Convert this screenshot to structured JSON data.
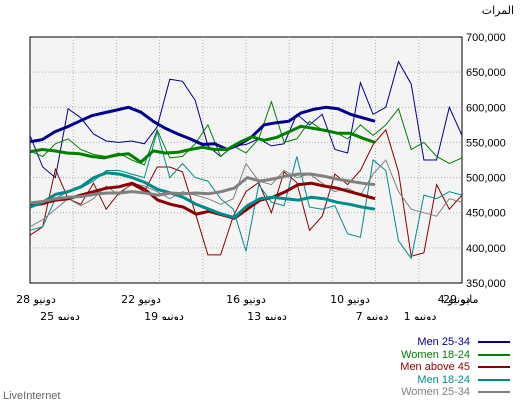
{
  "chart_data": {
    "type": "line",
    "ylabel": "المرات",
    "ylim": [
      350000,
      700000
    ],
    "yticks": [
      "700,000",
      "650,000",
      "600,000",
      "550,000",
      "500,000",
      "450,000",
      "400,000",
      "350,000"
    ],
    "x_ticks_upper": [
      "28 دونيو",
      "22 دونيو",
      "16 دونيو",
      "10 دونيو",
      "4 دونيو",
      "29 مايو"
    ],
    "x_ticks_lower": [
      "25 دونيو",
      "19 دونيو",
      "13 دونيو",
      "7 دونيو",
      "1 دونيو"
    ],
    "grid": true,
    "legend_position": "bottom-right",
    "series": [
      {
        "name": "Men 25-34",
        "color": "#00008b",
        "values": [
          560000,
          515000,
          500000,
          598000,
          585000,
          562000,
          552000,
          550000,
          552000,
          548000,
          572000,
          640000,
          637000,
          610000,
          545000,
          530000,
          545000,
          547000,
          555000,
          545000,
          548000,
          590000,
          575000,
          590000,
          540000,
          535000,
          635000,
          590000,
          600000,
          665000,
          633000,
          525000,
          525000,
          600000,
          560000
        ],
        "trend": [
          551000,
          554000,
          565000,
          572000,
          580000,
          588000,
          592000,
          596000,
          600000,
          593000,
          580000,
          570000,
          562000,
          555000,
          547000,
          548000,
          540000,
          547000,
          558000,
          575000,
          578000,
          580000,
          592000,
          597000,
          600000,
          598000,
          590000,
          585000,
          580000
        ]
      },
      {
        "name": "Women 18-24",
        "color": "#008000",
        "values": [
          538000,
          530000,
          548000,
          555000,
          540000,
          533000,
          530000,
          535000,
          525000,
          518000,
          568000,
          528000,
          530000,
          548000,
          575000,
          530000,
          545000,
          535000,
          555000,
          608000,
          550000,
          555000,
          580000,
          568000,
          565000,
          555000,
          575000,
          560000,
          575000,
          598000,
          540000,
          550000,
          530000,
          520000,
          528000
        ],
        "trend": [
          537000,
          540000,
          538000,
          535000,
          534000,
          530000,
          528000,
          532000,
          534000,
          522000,
          538000,
          535000,
          536000,
          540000,
          543000,
          540000,
          540000,
          550000,
          558000,
          553000,
          557000,
          565000,
          573000,
          570000,
          567000,
          563000,
          563000,
          556000,
          550000
        ]
      },
      {
        "name": "Men above 45",
        "color": "#8b0000",
        "values": [
          418000,
          430000,
          512000,
          470000,
          462000,
          492000,
          455000,
          478000,
          490000,
          480000,
          515000,
          515000,
          508000,
          450000,
          390000,
          390000,
          445000,
          480000,
          493000,
          450000,
          508000,
          493000,
          425000,
          445000,
          505000,
          490000,
          510000,
          547000,
          568000,
          508000,
          388000,
          393000,
          490000,
          455000,
          475000
        ],
        "trend": [
          460000,
          463000,
          468000,
          470000,
          475000,
          480000,
          485000,
          487000,
          492000,
          483000,
          468000,
          462000,
          458000,
          448000,
          452000,
          447000,
          442000,
          455000,
          468000,
          472000,
          480000,
          490000,
          492000,
          488000,
          485000,
          480000,
          475000,
          470000
        ]
      },
      {
        "name": "Men 18-24",
        "color": "#008b8b",
        "values": [
          425000,
          430000,
          470000,
          480000,
          485000,
          495000,
          510000,
          510000,
          505000,
          500000,
          565000,
          500000,
          520000,
          500000,
          495000,
          470000,
          455000,
          395000,
          490000,
          465000,
          460000,
          530000,
          458000,
          455000,
          460000,
          420000,
          415000,
          525000,
          510000,
          410000,
          385000,
          475000,
          470000,
          480000,
          475000
        ],
        "trend": [
          458000,
          465000,
          476000,
          480000,
          487000,
          500000,
          507000,
          505000,
          500000,
          493000,
          483000,
          478000,
          472000,
          462000,
          455000,
          448000,
          443000,
          460000,
          470000,
          472000,
          470000,
          468000,
          472000,
          470000,
          465000,
          462000,
          458000,
          455000
        ]
      },
      {
        "name": "Women 25-34",
        "color": "#808080",
        "values": [
          430000,
          440000,
          455000,
          470000,
          460000,
          470000,
          488000,
          475000,
          492000,
          488000,
          480000,
          470000,
          480000,
          475000,
          470000,
          462000,
          470000,
          520000,
          495000,
          490000,
          510000,
          500000,
          505000,
          492000,
          480000,
          485000,
          475000,
          505000,
          525000,
          480000,
          455000,
          450000,
          445000,
          470000,
          465000
        ],
        "trend": [
          464000,
          466000,
          470000,
          472000,
          473000,
          476000,
          478000,
          478000,
          480000,
          478000,
          475000,
          478000,
          477000,
          478000,
          477000,
          480000,
          485000,
          500000,
          495000,
          498000,
          502000,
          505000,
          505000,
          502000,
          498000,
          495000,
          492000,
          490000
        ]
      }
    ]
  },
  "brand": "LiveInternet"
}
